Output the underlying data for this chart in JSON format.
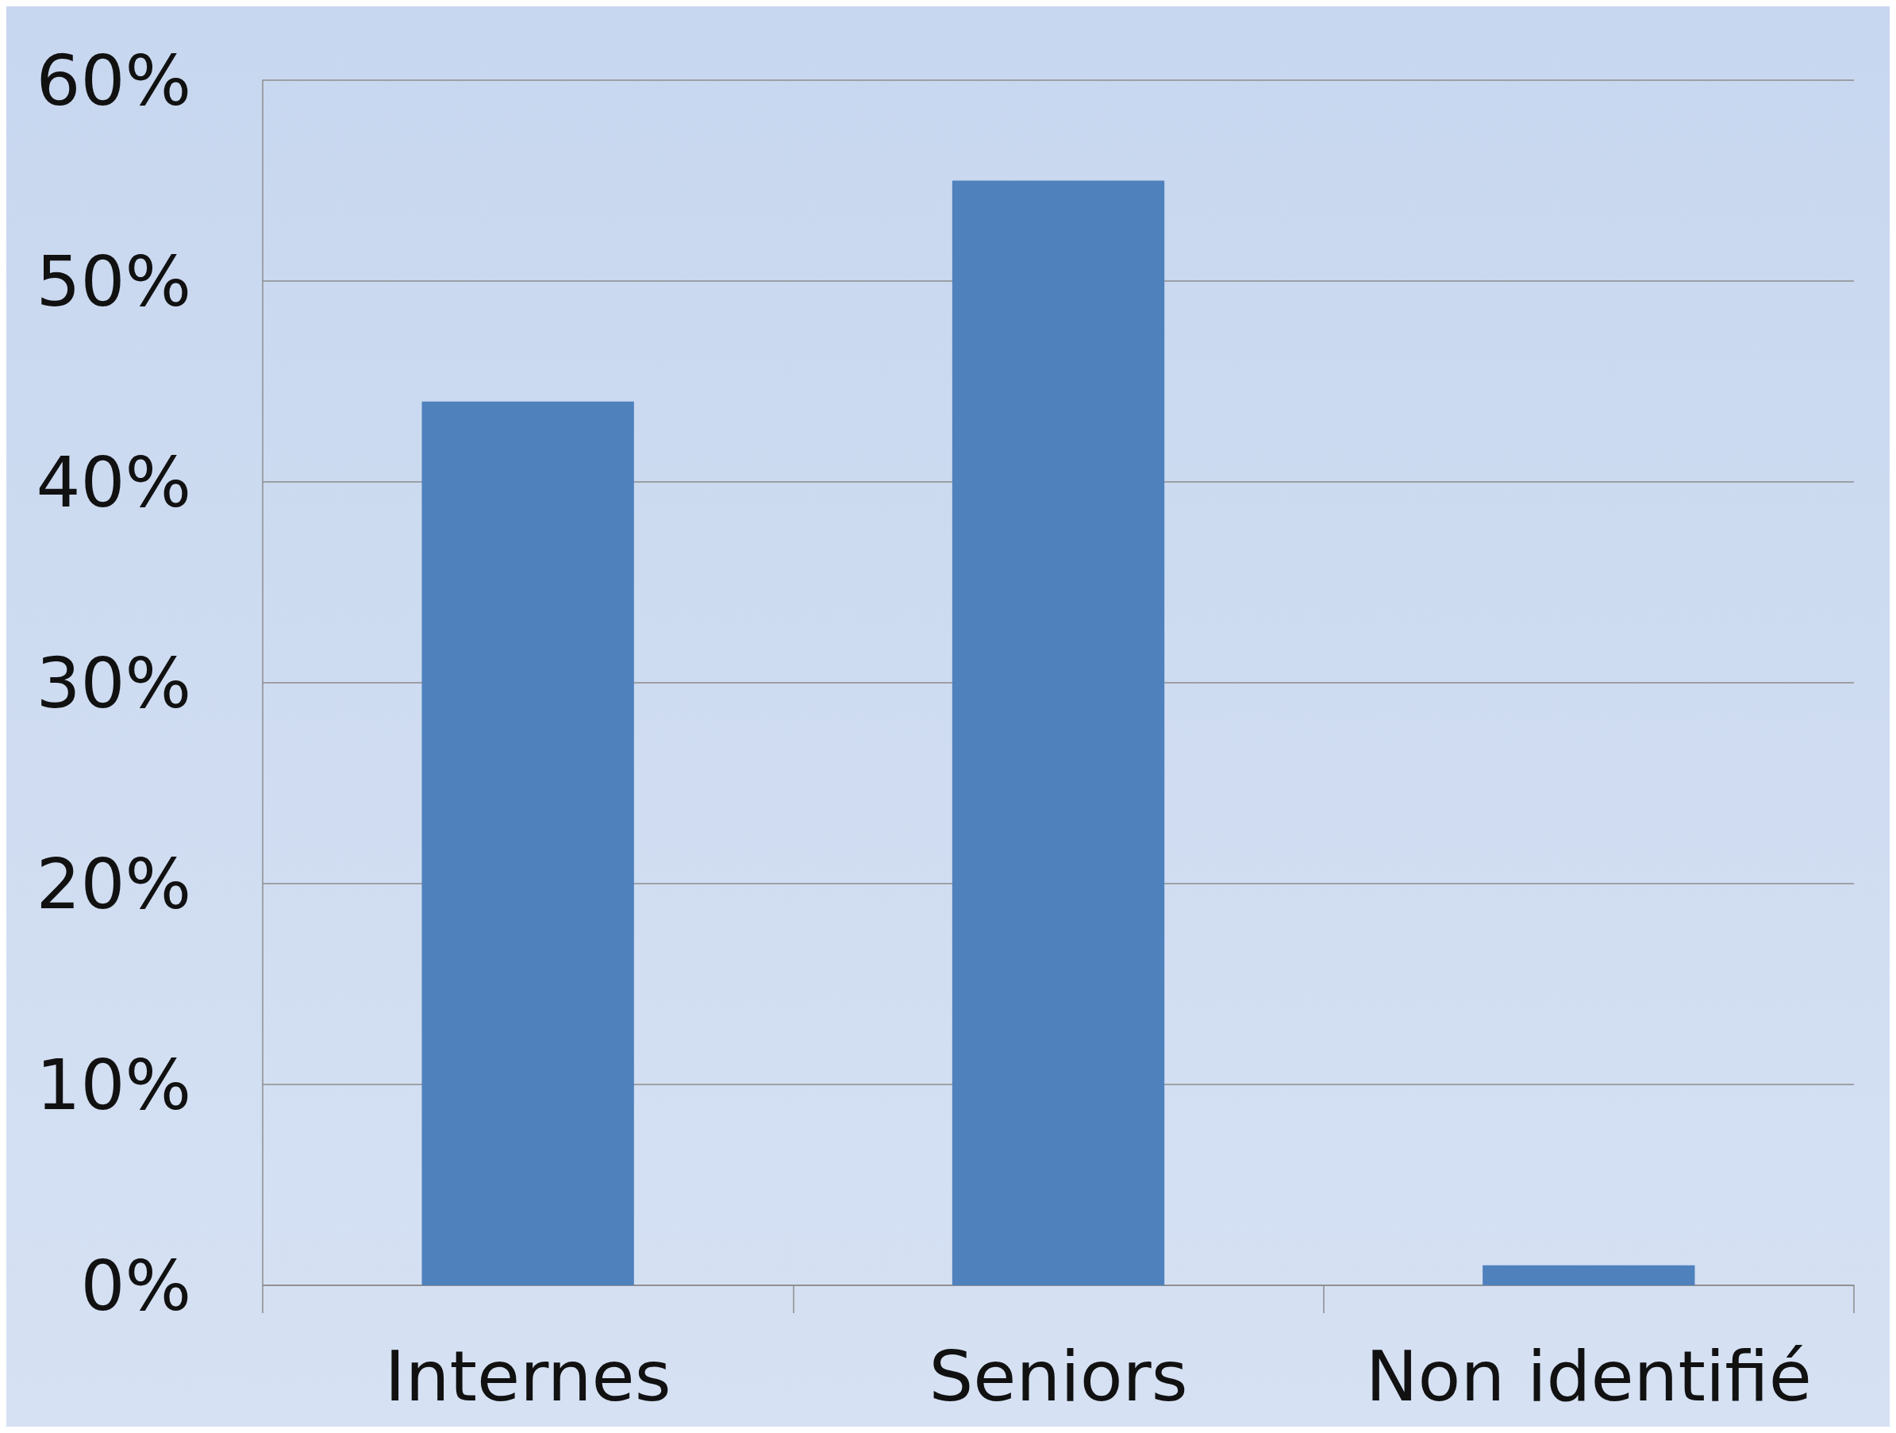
{
  "chart_data": {
    "type": "bar",
    "categories": [
      "Internes",
      "Seniors",
      "Non identifié"
    ],
    "values": [
      44,
      55,
      1
    ],
    "color": "#4f81bd",
    "ylim": [
      0,
      60
    ],
    "yticks": [
      {
        "value": 0,
        "label": "0%"
      },
      {
        "value": 10,
        "label": "10%"
      },
      {
        "value": 20,
        "label": "20%"
      },
      {
        "value": 30,
        "label": "30%"
      },
      {
        "value": 40,
        "label": "40%"
      },
      {
        "value": 50,
        "label": "50%"
      },
      {
        "value": 60,
        "label": "60%"
      }
    ],
    "grid": "y"
  }
}
